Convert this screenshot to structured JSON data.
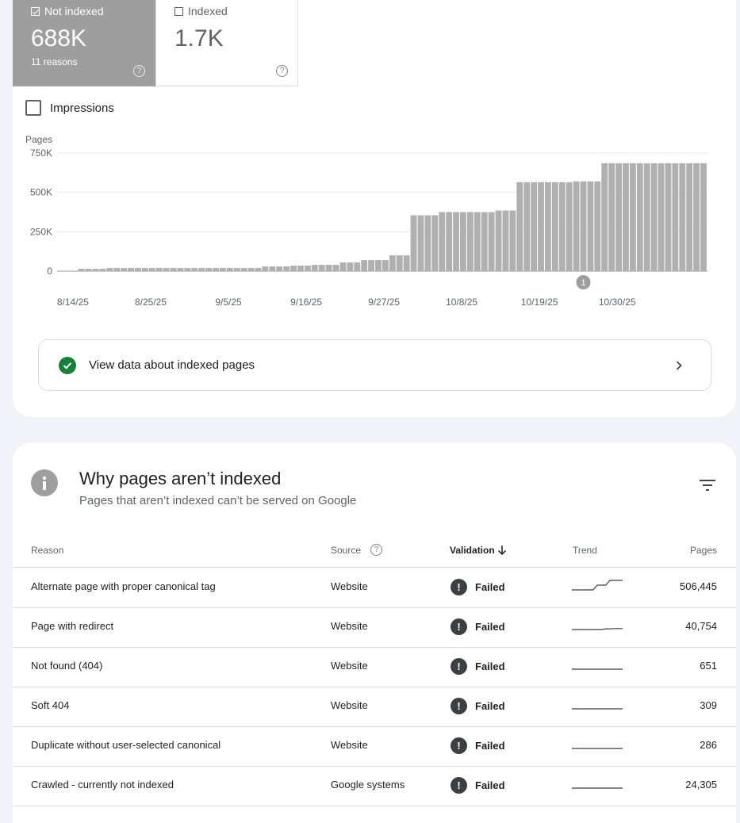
{
  "summary": {
    "not_indexed": {
      "label": "Not indexed",
      "value": "688K",
      "sub": "11 reasons",
      "checked": true
    },
    "indexed": {
      "label": "Indexed",
      "value": "1.7K",
      "checked": false
    }
  },
  "impressions": {
    "label": "Impressions",
    "checked": false
  },
  "chart_data": {
    "type": "bar",
    "ylabel": "Pages",
    "y_ticks": [
      "750K",
      "500K",
      "250K",
      "0"
    ],
    "ylim": [
      0,
      750000
    ],
    "x_tick_labels": [
      "8/14/25",
      "8/25/25",
      "9/5/25",
      "9/16/25",
      "9/27/25",
      "10/8/25",
      "10/19/25",
      "10/30/25"
    ],
    "annotation": "1",
    "series": [
      {
        "values": [
          0,
          0,
          0,
          15000,
          15000,
          15000,
          15000,
          20000,
          20000,
          20000,
          20000,
          20000,
          20000,
          20000,
          20000,
          20000,
          20000,
          20000,
          20000,
          20000,
          20000,
          20000,
          20000,
          20000,
          20000,
          20000,
          20000,
          20000,
          20000,
          30000,
          30000,
          30000,
          30000,
          35000,
          35000,
          35000,
          40000,
          40000,
          40000,
          40000,
          55000,
          55000,
          55000,
          70000,
          70000,
          70000,
          70000,
          100000,
          100000,
          100000,
          355000,
          355000,
          355000,
          355000,
          375000,
          375000,
          375000,
          375000,
          375000,
          375000,
          375000,
          375000,
          385000,
          385000,
          385000,
          565000,
          565000,
          565000,
          565000,
          565000,
          565000,
          565000,
          565000,
          570000,
          570000,
          570000,
          570000,
          685000,
          685000,
          685000,
          685000,
          685000,
          685000,
          685000,
          685000,
          685000,
          685000,
          685000,
          685000,
          685000,
          685000,
          685000
        ]
      }
    ]
  },
  "view_indexed": {
    "label": "View data about indexed pages"
  },
  "section": {
    "title": "Why pages aren’t indexed",
    "subtitle": "Pages that aren’t indexed can’t be served on Google"
  },
  "table": {
    "headers": {
      "reason": "Reason",
      "source": "Source",
      "validation": "Validation",
      "trend": "Trend",
      "pages": "Pages"
    },
    "rows": [
      {
        "reason": "Alternate page with proper canonical tag",
        "source": "Website",
        "validation": "Failed",
        "pages": "506,445",
        "trend": [
          0,
          0,
          0,
          0,
          0,
          0,
          1,
          1,
          1,
          2,
          2,
          2,
          2
        ]
      },
      {
        "reason": "Page with redirect",
        "source": "Website",
        "validation": "Failed",
        "pages": "40,754",
        "trend": [
          0,
          0,
          0,
          0,
          0,
          0,
          0,
          0,
          0.15,
          0.15,
          0.2,
          0.2,
          0.2
        ]
      },
      {
        "reason": "Not found (404)",
        "source": "Website",
        "validation": "Failed",
        "pages": "651",
        "trend": [
          0,
          0,
          0,
          0,
          0,
          0,
          0,
          0,
          0,
          0,
          0,
          0,
          0
        ]
      },
      {
        "reason": "Soft 404",
        "source": "Website",
        "validation": "Failed",
        "pages": "309",
        "trend": [
          0,
          0,
          0,
          0,
          0,
          0,
          0,
          0,
          0,
          0,
          0,
          0,
          0
        ]
      },
      {
        "reason": "Duplicate without user-selected canonical",
        "source": "Website",
        "validation": "Failed",
        "pages": "286",
        "trend": [
          0,
          0,
          0,
          0,
          0,
          0,
          0,
          0,
          0,
          0,
          0,
          0,
          0
        ]
      },
      {
        "reason": "Crawled - currently not indexed",
        "source": "Google systems",
        "validation": "Failed",
        "pages": "24,305",
        "trend": [
          0,
          0,
          0,
          0,
          0,
          0,
          0,
          0,
          0,
          0,
          0,
          0,
          0
        ]
      }
    ]
  },
  "colors": {
    "bar": "#b0b0b0",
    "failed": "#3c4043",
    "ok": "#188038",
    "tile_selected": "#9e9e9e"
  }
}
